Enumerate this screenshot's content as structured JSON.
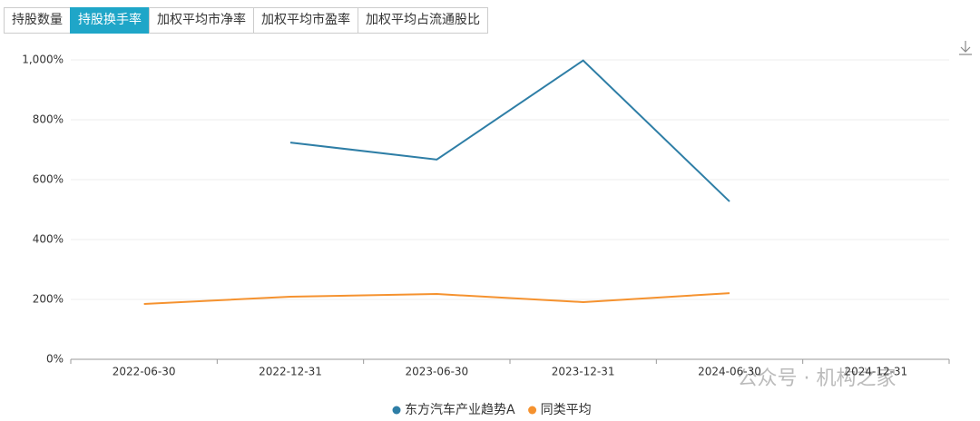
{
  "tabs": [
    "持股数量",
    "持股换手率",
    "加权平均市净率",
    "加权平均市盈率",
    "加权平均占流通股比"
  ],
  "active_tab": 1,
  "watermark": "公众号 · 机构之家",
  "chart_data": {
    "type": "line",
    "categories": [
      "2022-06-30",
      "2022-12-31",
      "2023-06-30",
      "2023-12-31",
      "2024-06-30",
      "2024-12-31"
    ],
    "series": [
      {
        "name": "东方汽车产业趋势A",
        "color": "#2e7ea6",
        "values": [
          null,
          724,
          667,
          998,
          527,
          null
        ]
      },
      {
        "name": "同类平均",
        "color": "#f5922f",
        "values": [
          185,
          209,
          218,
          191,
          221,
          null
        ]
      }
    ],
    "ylim": [
      0,
      1000
    ],
    "yticks": [
      {
        "value": 0,
        "label": "0%"
      },
      {
        "value": 200,
        "label": "200%"
      },
      {
        "value": 400,
        "label": "400%"
      },
      {
        "value": 600,
        "label": "600%"
      },
      {
        "value": 800,
        "label": "800%"
      },
      {
        "value": 1000,
        "label": "1,000%"
      }
    ],
    "grid": true
  }
}
